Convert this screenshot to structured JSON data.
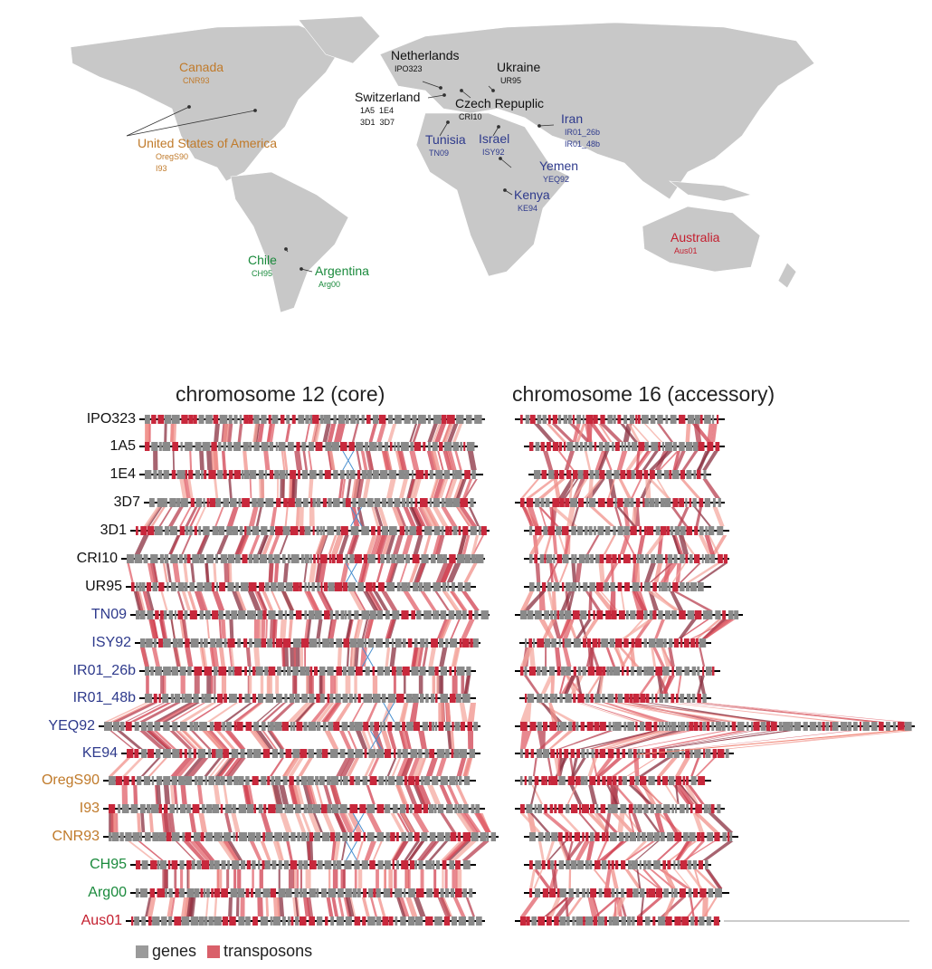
{
  "colors": {
    "black": "#111111",
    "blue": "#2e3a8c",
    "orange": "#c07a2a",
    "green": "#1a8a3c",
    "red": "#c41e2e",
    "land": "#c8c8c8",
    "gene": "#8a8a8a",
    "te": "#c8283c",
    "synteny": "#e0606a",
    "inversion": "#4a90d0"
  },
  "map": {
    "countries": [
      {
        "name": "Netherlands",
        "strains": [
          "IPO323"
        ],
        "group": "black"
      },
      {
        "name": "Ukraine",
        "strains": [
          "UR95"
        ],
        "group": "black"
      },
      {
        "name": "Switzerland",
        "strains": [
          "1A5  1E4",
          "3D1  3D7"
        ],
        "group": "black"
      },
      {
        "name": "Czech Repuplic",
        "strains": [
          "CRI10"
        ],
        "group": "black"
      },
      {
        "name": "Canada",
        "strains": [
          "CNR93"
        ],
        "group": "orange"
      },
      {
        "name": "United States of America",
        "strains": [
          "OregS90",
          "I93"
        ],
        "group": "orange"
      },
      {
        "name": "Tunisia",
        "strains": [
          "TN09"
        ],
        "group": "blue"
      },
      {
        "name": "Israel",
        "strains": [
          "ISY92"
        ],
        "group": "blue"
      },
      {
        "name": "Iran",
        "strains": [
          "IR01_26b",
          "IR01_48b"
        ],
        "group": "blue"
      },
      {
        "name": "Yemen",
        "strains": [
          "YEQ92"
        ],
        "group": "blue"
      },
      {
        "name": "Kenya",
        "strains": [
          "KE94"
        ],
        "group": "blue"
      },
      {
        "name": "Chile",
        "strains": [
          "CH95"
        ],
        "group": "green"
      },
      {
        "name": "Argentina",
        "strains": [
          "Arg00"
        ],
        "group": "green"
      },
      {
        "name": "Australia",
        "strains": [
          "Aus01"
        ],
        "group": "red"
      }
    ]
  },
  "panels": [
    {
      "title": "chromosome 12 (core)"
    },
    {
      "title": "chromosome 16 (accessory)"
    }
  ],
  "strains": [
    {
      "label": "IPO323",
      "group": "black"
    },
    {
      "label": "1A5",
      "group": "black"
    },
    {
      "label": "1E4",
      "group": "black"
    },
    {
      "label": "3D7",
      "group": "black"
    },
    {
      "label": "3D1",
      "group": "black"
    },
    {
      "label": "CRI10",
      "group": "black"
    },
    {
      "label": "UR95",
      "group": "black"
    },
    {
      "label": "TN09",
      "group": "blue"
    },
    {
      "label": "ISY92",
      "group": "blue"
    },
    {
      "label": "IR01_26b",
      "group": "blue"
    },
    {
      "label": "IR01_48b",
      "group": "blue"
    },
    {
      "label": "YEQ92",
      "group": "blue"
    },
    {
      "label": "KE94",
      "group": "blue"
    },
    {
      "label": "OregS90",
      "group": "orange"
    },
    {
      "label": "I93",
      "group": "orange"
    },
    {
      "label": "CNR93",
      "group": "orange"
    },
    {
      "label": "CH95",
      "group": "green"
    },
    {
      "label": "Arg00",
      "group": "green"
    },
    {
      "label": "Aus01",
      "group": "red"
    }
  ],
  "legend": [
    {
      "label": "genes",
      "color": "#9a9a9a"
    },
    {
      "label": "transposons",
      "color": "#d9606a"
    }
  ]
}
